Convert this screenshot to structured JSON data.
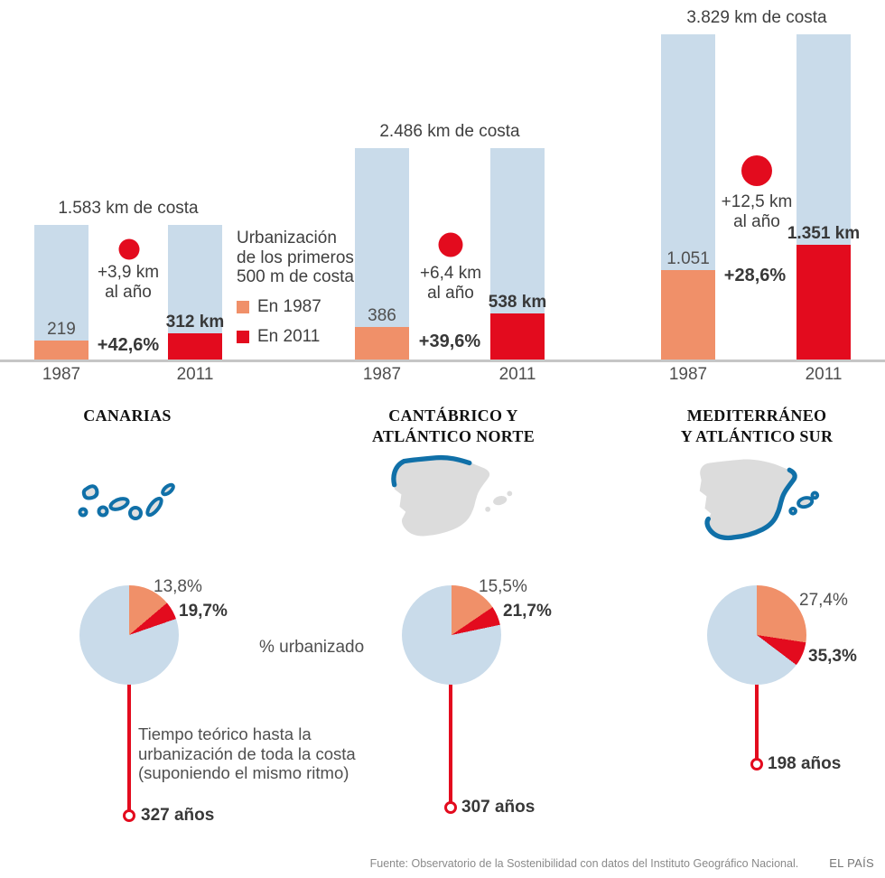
{
  "legend": {
    "title_lines": [
      "Urbanización",
      "de los primeros",
      "500 m de costa"
    ],
    "items": [
      {
        "label": "En 1987",
        "color": "#f09069"
      },
      {
        "label": "En 2011",
        "color": "#e30b1e"
      }
    ]
  },
  "colors": {
    "total_coast": "#c9dbea",
    "year_1987": "#f09069",
    "year_2011": "#e30b1e",
    "coast_outline": "#1070a8",
    "map_fill": "#dcdcdc"
  },
  "regions": [
    {
      "name": "Canarias",
      "title_lines": [
        "CANARIAS"
      ],
      "coast_label": "1.583 km de costa",
      "km_year_lines": [
        "+3,9 km",
        "al año"
      ],
      "value_1987": "219",
      "value_2011": "312 km",
      "growth": "+42,6%",
      "year_1987_tick": "1987",
      "year_2011_tick": "2011",
      "pie_pct_1987": "13,8%",
      "pie_pct_2011": "19,7%",
      "years_label": "327 años"
    },
    {
      "name": "Cantábrico y Atlántico Norte",
      "title_lines": [
        "CANTÁBRICO Y",
        "ATLÁNTICO NORTE"
      ],
      "coast_label": "2.486 km de costa",
      "km_year_lines": [
        "+6,4 km",
        "al año"
      ],
      "value_1987": "386",
      "value_2011": "538 km",
      "growth": "+39,6%",
      "year_1987_tick": "1987",
      "year_2011_tick": "2011",
      "pie_pct_1987": "15,5%",
      "pie_pct_2011": "21,7%",
      "years_label": "307 años"
    },
    {
      "name": "Mediterráneo y Atlántico Sur",
      "title_lines": [
        "MEDITERRÁNEO",
        "Y ATLÁNTICO SUR"
      ],
      "coast_label": "3.829 km de costa",
      "km_year_lines": [
        "+12,5 km",
        "al año"
      ],
      "value_1987": "1.051",
      "value_2011": "1.351 km",
      "growth": "+28,6%",
      "year_1987_tick": "1987",
      "year_2011_tick": "2011",
      "pie_pct_1987": "27,4%",
      "pie_pct_2011": "35,3%",
      "years_label": "198 años"
    }
  ],
  "pie_caption": "% urbanizado",
  "stick_caption_lines": [
    "Tiempo teórico hasta la",
    "urbanización de toda la costa",
    "(suponiendo el mismo ritmo)"
  ],
  "footer": {
    "source": "Fuente: Observatorio de la Sostenibilidad con datos del Instituto Geográfico Nacional.",
    "brand": "EL PAÍS"
  },
  "chart_data": [
    {
      "type": "bar",
      "title": "Urbanización de los primeros 500 m de costa (km)",
      "categories": [
        "Canarias",
        "Cantábrico y Atlántico Norte",
        "Mediterráneo y Atlántico Sur"
      ],
      "x_ticks": [
        "1987",
        "2011"
      ],
      "series": [
        {
          "name": "Costa total (km)",
          "values": [
            1583,
            2486,
            3829
          ]
        },
        {
          "name": "Urbanizado en 1987 (km)",
          "values": [
            219,
            386,
            1051
          ]
        },
        {
          "name": "Urbanizado en 2011 (km)",
          "values": [
            312,
            538,
            1351
          ]
        }
      ],
      "growth_pct": [
        42.6,
        39.6,
        28.6
      ],
      "km_per_year": [
        3.9,
        6.4,
        12.5
      ],
      "legend_position": "left-of-second-group",
      "grid": false
    },
    {
      "type": "pie",
      "title": "% urbanizado",
      "categories": [
        "Canarias",
        "Cantábrico y Atlántico Norte",
        "Mediterráneo y Atlántico Sur"
      ],
      "series": [
        {
          "name": "En 1987 (%)",
          "values": [
            13.8,
            15.5,
            27.4
          ]
        },
        {
          "name": "En 2011 (%)",
          "values": [
            19.7,
            21.7,
            35.3
          ]
        }
      ],
      "years_to_full": [
        327,
        307,
        198
      ]
    }
  ]
}
